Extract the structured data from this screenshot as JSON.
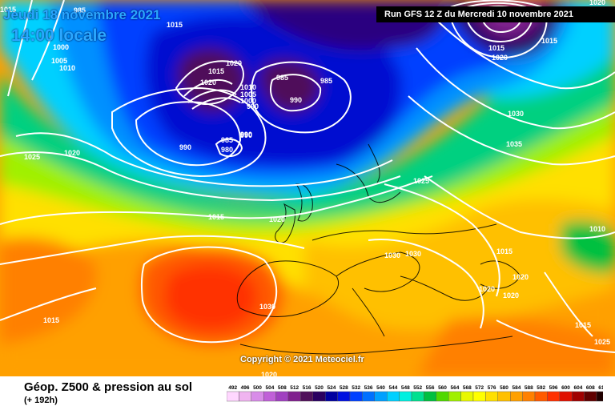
{
  "header": {
    "date_text": "Jeudi 18 novembre 2021",
    "time_text": "14:00 locale",
    "run_text": "Run GFS 12 Z du Mercredi 10 novembre 2021"
  },
  "footer": {
    "title": "Géop. Z500 & pression au sol",
    "subtitle": "(+ 192h)",
    "copyright": "Copyright © 2021 Meteociel.fr"
  },
  "scale": {
    "values": [
      "492",
      "496",
      "500",
      "504",
      "508",
      "512",
      "516",
      "520",
      "524",
      "528",
      "532",
      "536",
      "540",
      "544",
      "548",
      "552",
      "556",
      "560",
      "564",
      "568",
      "572",
      "576",
      "580",
      "584",
      "588",
      "592",
      "596",
      "600",
      "604",
      "608",
      "612"
    ],
    "colors": [
      "#ffd7ff",
      "#f0b4f0",
      "#d88ce8",
      "#c060d8",
      "#a040c0",
      "#80208e",
      "#50105a",
      "#2a0060",
      "#0000a0",
      "#0010e0",
      "#0040ff",
      "#0070ff",
      "#00a0ff",
      "#00d0ff",
      "#00f0e0",
      "#00e090",
      "#00c040",
      "#50d800",
      "#a0f000",
      "#e8f800",
      "#ffff00",
      "#ffe000",
      "#ffc000",
      "#ffa000",
      "#ff8000",
      "#ff5a00",
      "#ff3000",
      "#e01000",
      "#a00000",
      "#600000",
      "#200000"
    ]
  },
  "isobars": [
    {
      "value": "985",
      "bold": false
    },
    {
      "value": "1015",
      "bold": false
    },
    {
      "value": "1000",
      "bold": false
    },
    {
      "value": "1005",
      "bold": false
    },
    {
      "value": "1010",
      "bold": false
    },
    {
      "value": "1020",
      "bold": false
    },
    {
      "value": "1015",
      "bold": false
    },
    {
      "value": "1020",
      "bold": false
    },
    {
      "value": "1010",
      "bold": false
    },
    {
      "value": "1005",
      "bold": false
    },
    {
      "value": "1000",
      "bold": false
    },
    {
      "value": "990",
      "bold": false
    },
    {
      "value": "985",
      "bold": false
    },
    {
      "value": "990",
      "bold": false
    },
    {
      "value": "985",
      "bold": false
    },
    {
      "value": "990",
      "bold": false
    },
    {
      "value": "990",
      "bold": false
    },
    {
      "value": "985",
      "bold": false
    },
    {
      "value": "980",
      "bold": false
    },
    {
      "value": "990",
      "bold": false
    },
    {
      "value": "1025",
      "bold": false
    },
    {
      "value": "1020",
      "bold": false
    },
    {
      "value": "1015",
      "bold": false
    },
    {
      "value": "1020",
      "bold": false
    },
    {
      "value": "1025",
      "bold": false
    },
    {
      "value": "1030",
      "bold": false
    },
    {
      "value": "1030",
      "bold": false
    },
    {
      "value": "1030",
      "bold": false
    },
    {
      "value": "1035",
      "bold": false
    },
    {
      "value": "1015",
      "bold": false
    },
    {
      "value": "1015",
      "bold": false
    },
    {
      "value": "1020",
      "bold": false
    },
    {
      "value": "1020",
      "bold": false
    },
    {
      "value": "1020",
      "bold": false
    },
    {
      "value": "1015",
      "bold": false
    },
    {
      "value": "1010",
      "bold": false
    },
    {
      "value": "1030",
      "bold": false
    },
    {
      "value": "1015",
      "bold": false
    },
    {
      "value": "1020",
      "bold": false
    },
    {
      "value": "1015",
      "bold": false
    },
    {
      "value": "1020",
      "bold": false
    },
    {
      "value": "1025",
      "bold": false
    },
    {
      "value": "1020",
      "bold": false
    },
    {
      "value": "1015",
      "bold": false
    }
  ]
}
